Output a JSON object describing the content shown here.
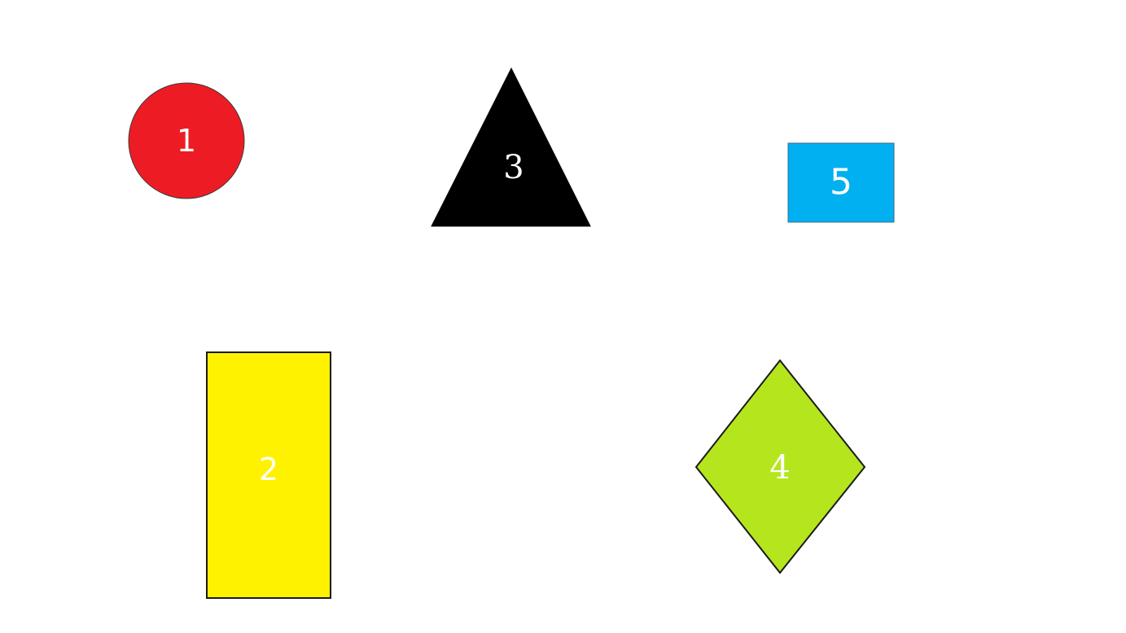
{
  "shapes": [
    {
      "id": "circle",
      "label": "1",
      "fill": "#ed1c24",
      "stroke": "#3a3a3a"
    },
    {
      "id": "rectangle",
      "label": "2",
      "fill": "#fff200",
      "stroke": "#1a1a1a"
    },
    {
      "id": "triangle",
      "label": "3",
      "fill": "#000000",
      "stroke": "#000000"
    },
    {
      "id": "diamond",
      "label": "4",
      "fill": "#b5e61d",
      "stroke": "#1a1a1a"
    },
    {
      "id": "small-rectangle",
      "label": "5",
      "fill": "#00b0f0",
      "stroke": "#3a6a8a"
    }
  ]
}
